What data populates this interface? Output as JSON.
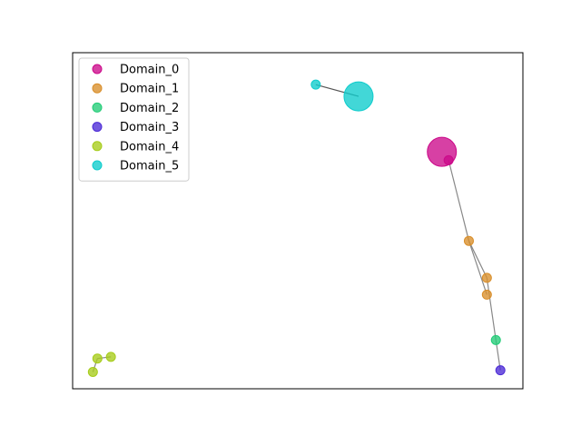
{
  "chart_data": {
    "type": "scatter",
    "title": "",
    "xlabel": "",
    "ylabel": "",
    "axis_ticks": "hidden",
    "xlim": [
      0,
      100
    ],
    "ylim": [
      0,
      100
    ],
    "legend_position": "top-left",
    "series": [
      {
        "name": "Domain_0",
        "color": "#cc0a8a",
        "points": [
          {
            "x": 82.0,
            "y": 70.5,
            "size": "large"
          },
          {
            "x": 83.5,
            "y": 68.0,
            "size": "small"
          }
        ]
      },
      {
        "name": "Domain_1",
        "color": "#d98e2a",
        "points": [
          {
            "x": 88.0,
            "y": 44.0,
            "size": "small"
          },
          {
            "x": 92.0,
            "y": 33.0,
            "size": "small"
          },
          {
            "x": 92.0,
            "y": 28.0,
            "size": "small"
          }
        ]
      },
      {
        "name": "Domain_2",
        "color": "#22cc77",
        "points": [
          {
            "x": 94.0,
            "y": 14.5,
            "size": "small"
          }
        ]
      },
      {
        "name": "Domain_3",
        "color": "#4b2ad6",
        "points": [
          {
            "x": 95.0,
            "y": 5.5,
            "size": "small"
          }
        ]
      },
      {
        "name": "Domain_4",
        "color": "#a6cc1a",
        "points": [
          {
            "x": 8.5,
            "y": 9.5,
            "size": "small"
          },
          {
            "x": 5.5,
            "y": 9.0,
            "size": "small"
          },
          {
            "x": 4.5,
            "y": 5.0,
            "size": "small"
          }
        ]
      },
      {
        "name": "Domain_5",
        "color": "#0dcccc",
        "points": [
          {
            "x": 54.0,
            "y": 90.5,
            "size": "small"
          },
          {
            "x": 63.5,
            "y": 87.0,
            "size": "large"
          }
        ]
      }
    ],
    "edges": [
      {
        "from": [
          54.0,
          90.5
        ],
        "to": [
          63.5,
          87.0
        ],
        "color": "#555555"
      },
      {
        "from": [
          83.5,
          68.0
        ],
        "to": [
          88.0,
          44.0
        ],
        "color": "#888888"
      },
      {
        "from": [
          88.0,
          44.0
        ],
        "to": [
          92.0,
          33.0
        ],
        "color": "#888888"
      },
      {
        "from": [
          88.0,
          44.0
        ],
        "to": [
          92.0,
          28.0
        ],
        "color": "#888888"
      },
      {
        "from": [
          92.0,
          33.0
        ],
        "to": [
          94.0,
          14.5
        ],
        "color": "#888888"
      },
      {
        "from": [
          94.0,
          14.5
        ],
        "to": [
          95.0,
          5.5
        ],
        "color": "#888888"
      },
      {
        "from": [
          8.5,
          9.5
        ],
        "to": [
          5.5,
          9.0
        ],
        "color": "#888888"
      },
      {
        "from": [
          5.5,
          9.0
        ],
        "to": [
          4.5,
          5.0
        ],
        "color": "#888888"
      }
    ]
  }
}
